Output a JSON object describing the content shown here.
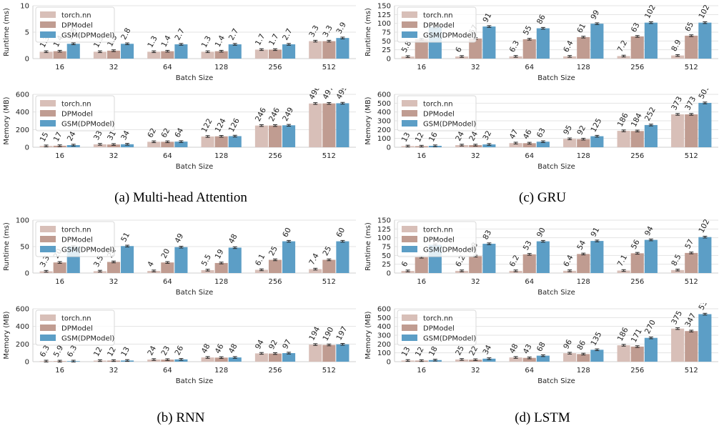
{
  "colors": {
    "torch": "#d8bfb8",
    "dp": "#c09c91",
    "gsm": "#5c9ec6",
    "grid": "#e3e3e3",
    "err": "#222222"
  },
  "legend_labels": [
    "torch.nn",
    "DPModel",
    "GSM(DPModel)"
  ],
  "captions": {
    "a": "(a) Multi-head Attention",
    "b": "(b) RNN",
    "c": "(c) GRU",
    "d": "(d) LSTM"
  },
  "chart_data": [
    {
      "id": "mha-runtime",
      "type": "bar",
      "categories": [
        "16",
        "32",
        "64",
        "128",
        "256",
        "512"
      ],
      "xlabel": "Batch Size",
      "ylabel": "Runtime (ms)",
      "ylim": [
        0,
        10
      ],
      "yticks": [
        0,
        5,
        10
      ],
      "grid": true,
      "legend": "top-left",
      "series": [
        {
          "name": "torch.nn",
          "values": [
            1.3,
            1.3,
            1.3,
            1.3,
            1.7,
            3.3
          ],
          "labels": [
            "1.3",
            "1.3",
            "1.3",
            "1.3",
            "1.7",
            "3.3"
          ]
        },
        {
          "name": "DPModel",
          "values": [
            1.4,
            1.5,
            1.4,
            1.4,
            1.7,
            3.3
          ],
          "labels": [
            "1.4",
            "1.5",
            "1.4",
            "1.4",
            "1.7",
            "3.3"
          ]
        },
        {
          "name": "GSM(DPModel)",
          "values": [
            2.8,
            2.8,
            2.7,
            2.7,
            2.7,
            3.9
          ],
          "labels": [
            "2.8",
            "2.8",
            "2.7",
            "2.7",
            "2.7",
            "3.9"
          ]
        }
      ]
    },
    {
      "id": "mha-memory",
      "type": "bar",
      "categories": [
        "16",
        "32",
        "64",
        "128",
        "256",
        "512"
      ],
      "xlabel": "Batch Size",
      "ylabel": "Memory (MB)",
      "ylim": [
        0,
        600
      ],
      "yticks": [
        0,
        200,
        400,
        600
      ],
      "grid": true,
      "legend": "top-left",
      "series": [
        {
          "name": "torch.nn",
          "values": [
            15,
            33,
            62,
            122,
            246,
            496
          ],
          "labels": [
            "15",
            "33",
            "62",
            "122",
            "246",
            "496"
          ]
        },
        {
          "name": "DPModel",
          "values": [
            17,
            31,
            62,
            124,
            246,
            497
          ],
          "labels": [
            "17",
            "31",
            "62",
            "124",
            "246",
            "497"
          ]
        },
        {
          "name": "GSM(DPModel)",
          "values": [
            24,
            34,
            64,
            126,
            249,
            499
          ],
          "labels": [
            "24",
            "34",
            "64",
            "126",
            "249",
            "499"
          ]
        }
      ]
    },
    {
      "id": "rnn-runtime",
      "type": "bar",
      "categories": [
        "16",
        "32",
        "64",
        "128",
        "256",
        "512"
      ],
      "xlabel": "Batch Size",
      "ylabel": "Runtime (ms)",
      "ylim": [
        0,
        100
      ],
      "yticks": [
        0,
        50,
        100
      ],
      "grid": true,
      "legend": "top-left",
      "series": [
        {
          "name": "torch.nn",
          "values": [
            3.3,
            3.5,
            4,
            5.5,
            6.1,
            7.4
          ],
          "labels": [
            "3.3",
            "3.5",
            "4",
            "5.5",
            "6.1",
            "7.4"
          ]
        },
        {
          "name": "DPModel",
          "values": [
            20,
            21,
            20,
            19,
            25,
            25
          ],
          "labels": [
            "20",
            "21",
            "20",
            "19",
            "25",
            "25"
          ]
        },
        {
          "name": "GSM(DPModel)",
          "values": [
            50,
            51,
            49,
            48,
            60,
            60
          ],
          "labels": [
            "",
            "51",
            "49",
            "48",
            "60",
            "60"
          ]
        }
      ]
    },
    {
      "id": "rnn-memory",
      "type": "bar",
      "categories": [
        "16",
        "32",
        "64",
        "128",
        "256",
        "512"
      ],
      "xlabel": "Batch Size",
      "ylabel": "Memory (MB)",
      "ylim": [
        0,
        600
      ],
      "yticks": [
        0,
        200,
        400,
        600
      ],
      "grid": true,
      "legend": "top-left",
      "series": [
        {
          "name": "torch.nn",
          "values": [
            6.3,
            12,
            24,
            48,
            94,
            194
          ],
          "labels": [
            "6.3",
            "12",
            "24",
            "48",
            "94",
            "194"
          ]
        },
        {
          "name": "DPModel",
          "values": [
            5.9,
            12,
            23,
            46,
            92,
            190
          ],
          "labels": [
            "5.9",
            "12",
            "23",
            "46",
            "92",
            "190"
          ]
        },
        {
          "name": "GSM(DPModel)",
          "values": [
            6.3,
            13,
            26,
            48,
            97,
            197
          ],
          "labels": [
            "6.3",
            "13",
            "26",
            "48",
            "97",
            "197"
          ]
        }
      ]
    },
    {
      "id": "gru-runtime",
      "type": "bar",
      "categories": [
        "16",
        "32",
        "64",
        "128",
        "256",
        "512"
      ],
      "xlabel": "Batch Size",
      "ylabel": "Runtime (ms)",
      "ylim": [
        0,
        150
      ],
      "yticks": [
        0,
        25,
        50,
        75,
        100,
        125,
        150
      ],
      "grid": true,
      "legend": "top-left",
      "series": [
        {
          "name": "torch.nn",
          "values": [
            5.8,
            6,
            6.3,
            6.4,
            7.2,
            8.9
          ],
          "labels": [
            "5.8",
            "6",
            "6.3",
            "6.4",
            "7.2",
            "8.9"
          ]
        },
        {
          "name": "DPModel",
          "values": [
            55,
            57,
            55,
            61,
            63,
            65
          ],
          "labels": [
            "",
            "57",
            "55",
            "61",
            "63",
            "65"
          ]
        },
        {
          "name": "GSM(DPModel)",
          "values": [
            90,
            91,
            86,
            99,
            102,
            102
          ],
          "labels": [
            "",
            "91",
            "86",
            "99",
            "102",
            "102"
          ]
        }
      ]
    },
    {
      "id": "gru-memory",
      "type": "bar",
      "categories": [
        "16",
        "32",
        "64",
        "128",
        "256",
        "512"
      ],
      "xlabel": "Batch Size",
      "ylabel": "Memory (MB)",
      "ylim": [
        0,
        600
      ],
      "yticks": [
        0,
        100,
        200,
        300,
        400,
        500,
        600
      ],
      "grid": true,
      "legend": "top-left",
      "series": [
        {
          "name": "torch.nn",
          "values": [
            13,
            24,
            47,
            95,
            186,
            373
          ],
          "labels": [
            "13",
            "24",
            "47",
            "95",
            "186",
            "373"
          ]
        },
        {
          "name": "DPModel",
          "values": [
            12,
            24,
            46,
            92,
            184,
            373
          ],
          "labels": [
            "12",
            "24",
            "46",
            "92",
            "184",
            "373"
          ]
        },
        {
          "name": "GSM(DPModel)",
          "values": [
            16,
            32,
            63,
            125,
            252,
            503
          ],
          "labels": [
            "16",
            "32",
            "63",
            "125",
            "252",
            "503"
          ]
        }
      ]
    },
    {
      "id": "lstm-runtime",
      "type": "bar",
      "categories": [
        "16",
        "32",
        "64",
        "128",
        "256",
        "512"
      ],
      "xlabel": "Batch Size",
      "ylabel": "Runtime (ms)",
      "ylim": [
        0,
        150
      ],
      "yticks": [
        0,
        25,
        50,
        75,
        100,
        125,
        150
      ],
      "grid": true,
      "legend": "top-left",
      "series": [
        {
          "name": "torch.nn",
          "values": [
            6,
            6.2,
            6.2,
            6.4,
            7.1,
            8.5
          ],
          "labels": [
            "6",
            "6.2",
            "6.2",
            "6.4",
            "7.1",
            "8.5"
          ]
        },
        {
          "name": "DPModel",
          "values": [
            45,
            48,
            53,
            54,
            56,
            57
          ],
          "labels": [
            "",
            "48",
            "53",
            "54",
            "56",
            "57"
          ]
        },
        {
          "name": "GSM(DPModel)",
          "values": [
            80,
            83,
            90,
            91,
            94,
            102
          ],
          "labels": [
            "",
            "83",
            "90",
            "91",
            "94",
            "102"
          ]
        }
      ]
    },
    {
      "id": "lstm-memory",
      "type": "bar",
      "categories": [
        "16",
        "32",
        "64",
        "128",
        "256",
        "512"
      ],
      "xlabel": "Batch Size",
      "ylabel": "Memory (MB)",
      "ylim": [
        0,
        600
      ],
      "yticks": [
        0,
        100,
        200,
        300,
        400,
        500,
        600
      ],
      "grid": true,
      "legend": "top-left",
      "series": [
        {
          "name": "torch.nn",
          "values": [
            13,
            25,
            48,
            96,
            186,
            375
          ],
          "labels": [
            "13",
            "25",
            "48",
            "96",
            "186",
            "375"
          ]
        },
        {
          "name": "DPModel",
          "values": [
            12,
            22,
            43,
            86,
            171,
            347
          ],
          "labels": [
            "12",
            "22",
            "43",
            "86",
            "171",
            "347"
          ]
        },
        {
          "name": "GSM(DPModel)",
          "values": [
            18,
            34,
            68,
            135,
            270,
            539
          ],
          "labels": [
            "18",
            "34",
            "68",
            "135",
            "270",
            "539"
          ]
        }
      ]
    }
  ]
}
